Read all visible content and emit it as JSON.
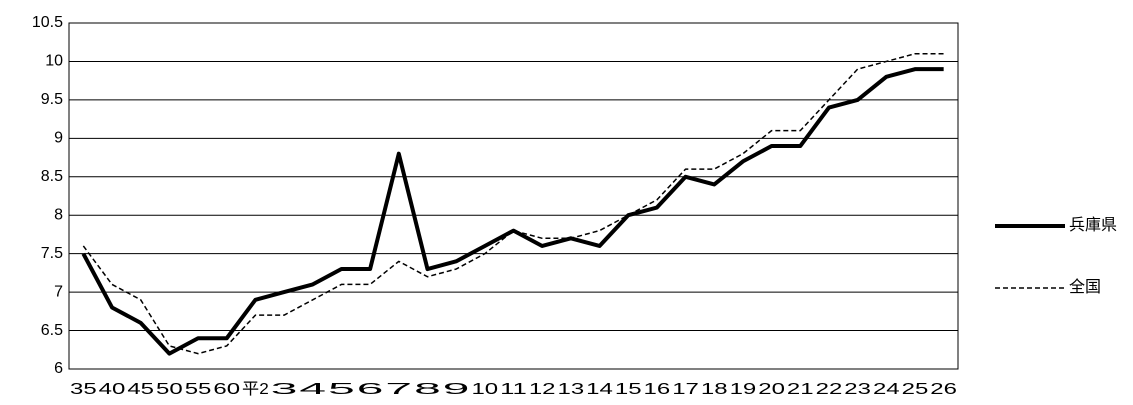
{
  "chart_data": {
    "type": "line",
    "categories": [
      "35",
      "40",
      "45",
      "50",
      "55",
      "60",
      "平2",
      "3",
      "4",
      "5",
      "6",
      "7",
      "8",
      "9",
      "10",
      "11",
      "12",
      "13",
      "14",
      "15",
      "16",
      "17",
      "18",
      "19",
      "20",
      "21",
      "22",
      "23",
      "24",
      "25",
      "26"
    ],
    "series": [
      {
        "name": "兵庫県",
        "color": "#000000",
        "style": "solid",
        "values": [
          7.5,
          6.8,
          6.6,
          6.2,
          6.4,
          6.4,
          6.9,
          7.0,
          7.1,
          7.3,
          7.3,
          8.8,
          7.3,
          7.4,
          7.6,
          7.8,
          7.6,
          7.7,
          7.6,
          8.0,
          8.1,
          8.5,
          8.4,
          8.7,
          8.9,
          8.9,
          9.4,
          9.5,
          9.8,
          9.9,
          9.9
        ]
      },
      {
        "name": "全国",
        "color": "#000000",
        "style": "dashed",
        "values": [
          7.6,
          7.1,
          6.9,
          6.3,
          6.2,
          6.3,
          6.7,
          6.7,
          6.9,
          7.1,
          7.1,
          7.4,
          7.2,
          7.3,
          7.5,
          7.8,
          7.7,
          7.7,
          7.8,
          8.0,
          8.2,
          8.6,
          8.6,
          8.8,
          9.1,
          9.1,
          9.5,
          9.9,
          10.0,
          10.1,
          10.1
        ]
      }
    ],
    "ylim": [
      6,
      10.5
    ],
    "yticks": [
      6,
      6.5,
      7,
      7.5,
      8,
      8.5,
      9,
      9.5,
      10,
      10.5
    ],
    "grid": true,
    "legend": "right"
  }
}
